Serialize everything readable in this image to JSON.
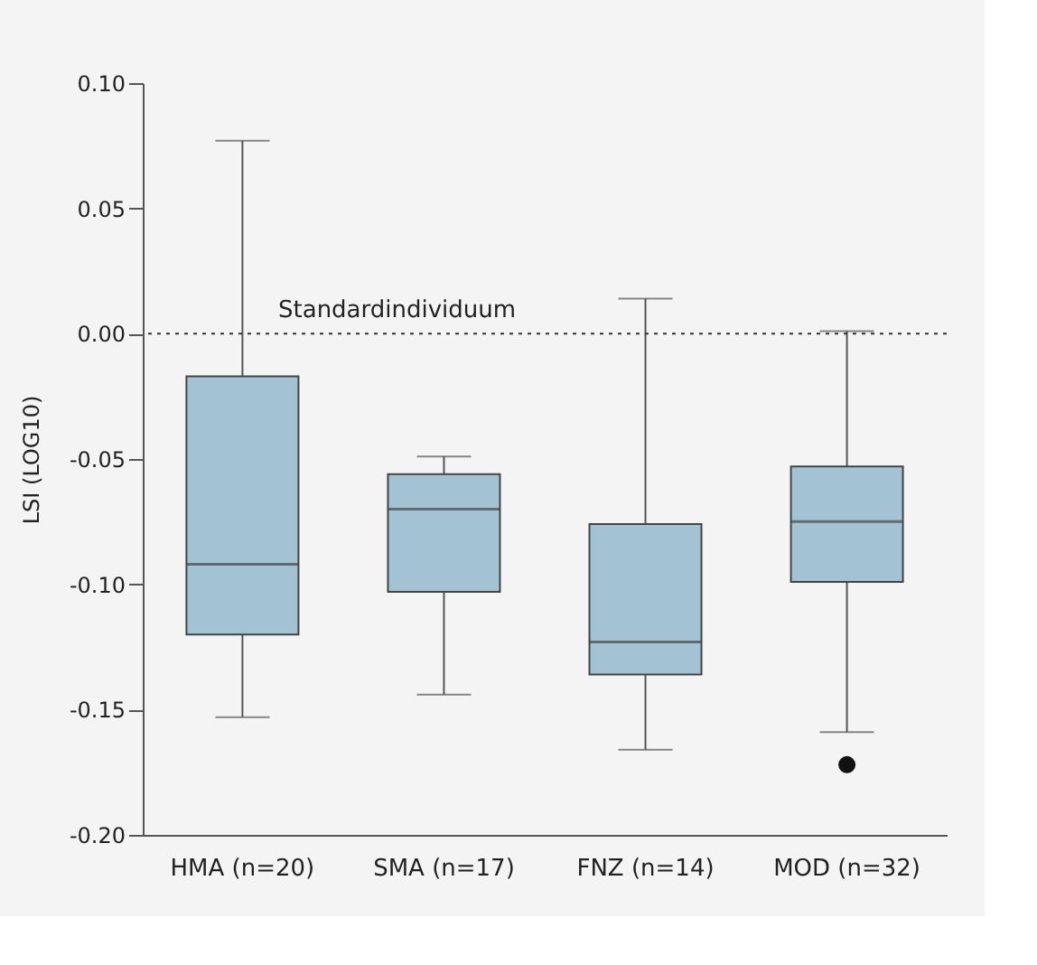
{
  "chart_data": {
    "type": "box",
    "ylabel": "LSI (LOG10)",
    "categories": [
      "HMA (n=20)",
      "SMA (n=17)",
      "FNZ (n=14)",
      "MOD (n=32)"
    ],
    "boxes": [
      {
        "low": -0.153,
        "q1": -0.12,
        "median": -0.092,
        "q3": -0.017,
        "high": 0.077
      },
      {
        "low": -0.144,
        "q1": -0.103,
        "median": -0.07,
        "q3": -0.056,
        "high": -0.049
      },
      {
        "low": -0.166,
        "q1": -0.136,
        "median": -0.123,
        "q3": -0.076,
        "high": 0.014
      },
      {
        "low": -0.159,
        "q1": -0.099,
        "median": -0.075,
        "q3": -0.053,
        "high": 0.001,
        "outliers": [
          -0.172
        ]
      }
    ],
    "color": "#a3c3d4",
    "ylim": [
      -0.2,
      0.1
    ],
    "yticks": [
      {
        "value": -0.2,
        "label": "-0.20"
      },
      {
        "value": -0.15,
        "label": "-0.15"
      },
      {
        "value": -0.1,
        "label": "-0.10"
      },
      {
        "value": -0.05,
        "label": "-0.05"
      },
      {
        "value": 0,
        "label": "0.00"
      },
      {
        "value": 0.05,
        "label": "0.05"
      },
      {
        "value": 0.1,
        "label": "0.10"
      }
    ],
    "grid": false,
    "ref_lines": [
      {
        "axis": "y",
        "value": 0,
        "label": "Standardindividuum",
        "line_style": "dotted"
      }
    ]
  }
}
